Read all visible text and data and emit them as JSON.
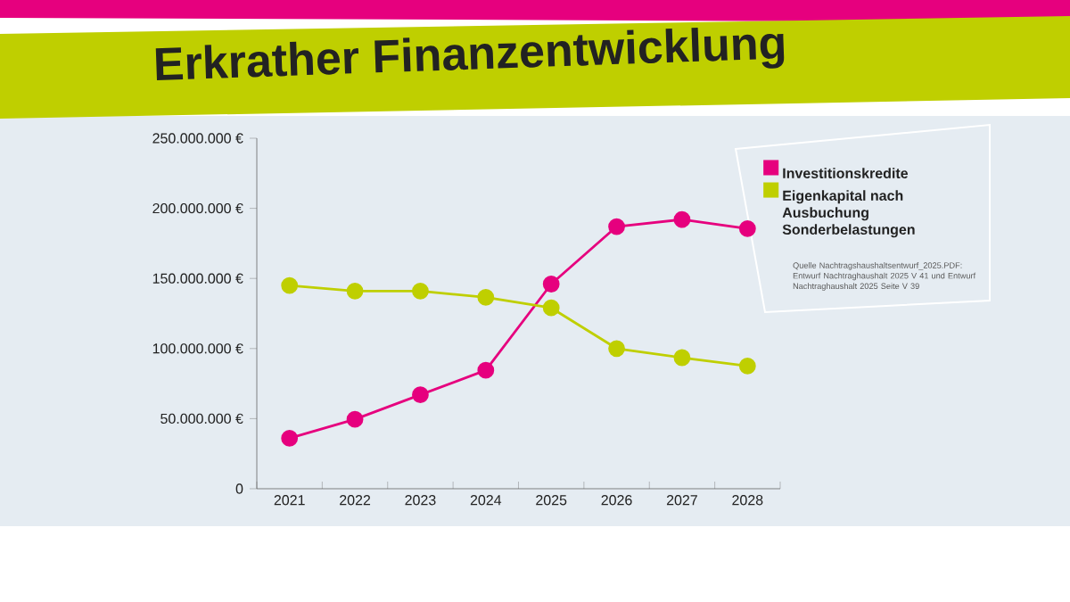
{
  "chart_data": {
    "type": "line",
    "title": "Erkrather Finanzentwicklung",
    "categories": [
      "2021",
      "2022",
      "2023",
      "2024",
      "2025",
      "2026",
      "2027",
      "2028"
    ],
    "series": [
      {
        "name": "Investitionskredite",
        "color": "#e6007e",
        "values": [
          36000000,
          49500000,
          67000000,
          84500000,
          146000000,
          187000000,
          192000000,
          185500000
        ]
      },
      {
        "name": "Eigenkapital nach Ausbuchung Sonderbelastungen",
        "color": "#bfcf00",
        "values": [
          145000000,
          141000000,
          141000000,
          136500000,
          129000000,
          100000000,
          93500000,
          87500000
        ]
      }
    ],
    "ylim": [
      0,
      250000000
    ],
    "yticks": [
      0,
      {
        "value": 50000000,
        "label": "50.000.000 €"
      },
      {
        "value": 100000000,
        "label": "100.000.000 €"
      },
      {
        "value": 150000000,
        "label": "150.000.000 €"
      },
      {
        "value": 200000000,
        "label": "200.000.000 €"
      },
      {
        "value": 250000000,
        "label": "250.000.000 €"
      }
    ],
    "marker": "circle",
    "line_style": "solid",
    "grid": false,
    "legend": "top right",
    "annotations": [
      "Quelle Nachtragshaushaltsentwurf_2025.PDF: Entwurf Nachtraghaushalt 2025 V 41 und Entwurf Nachtraghaushalt 2025 Seite V 39"
    ]
  }
}
